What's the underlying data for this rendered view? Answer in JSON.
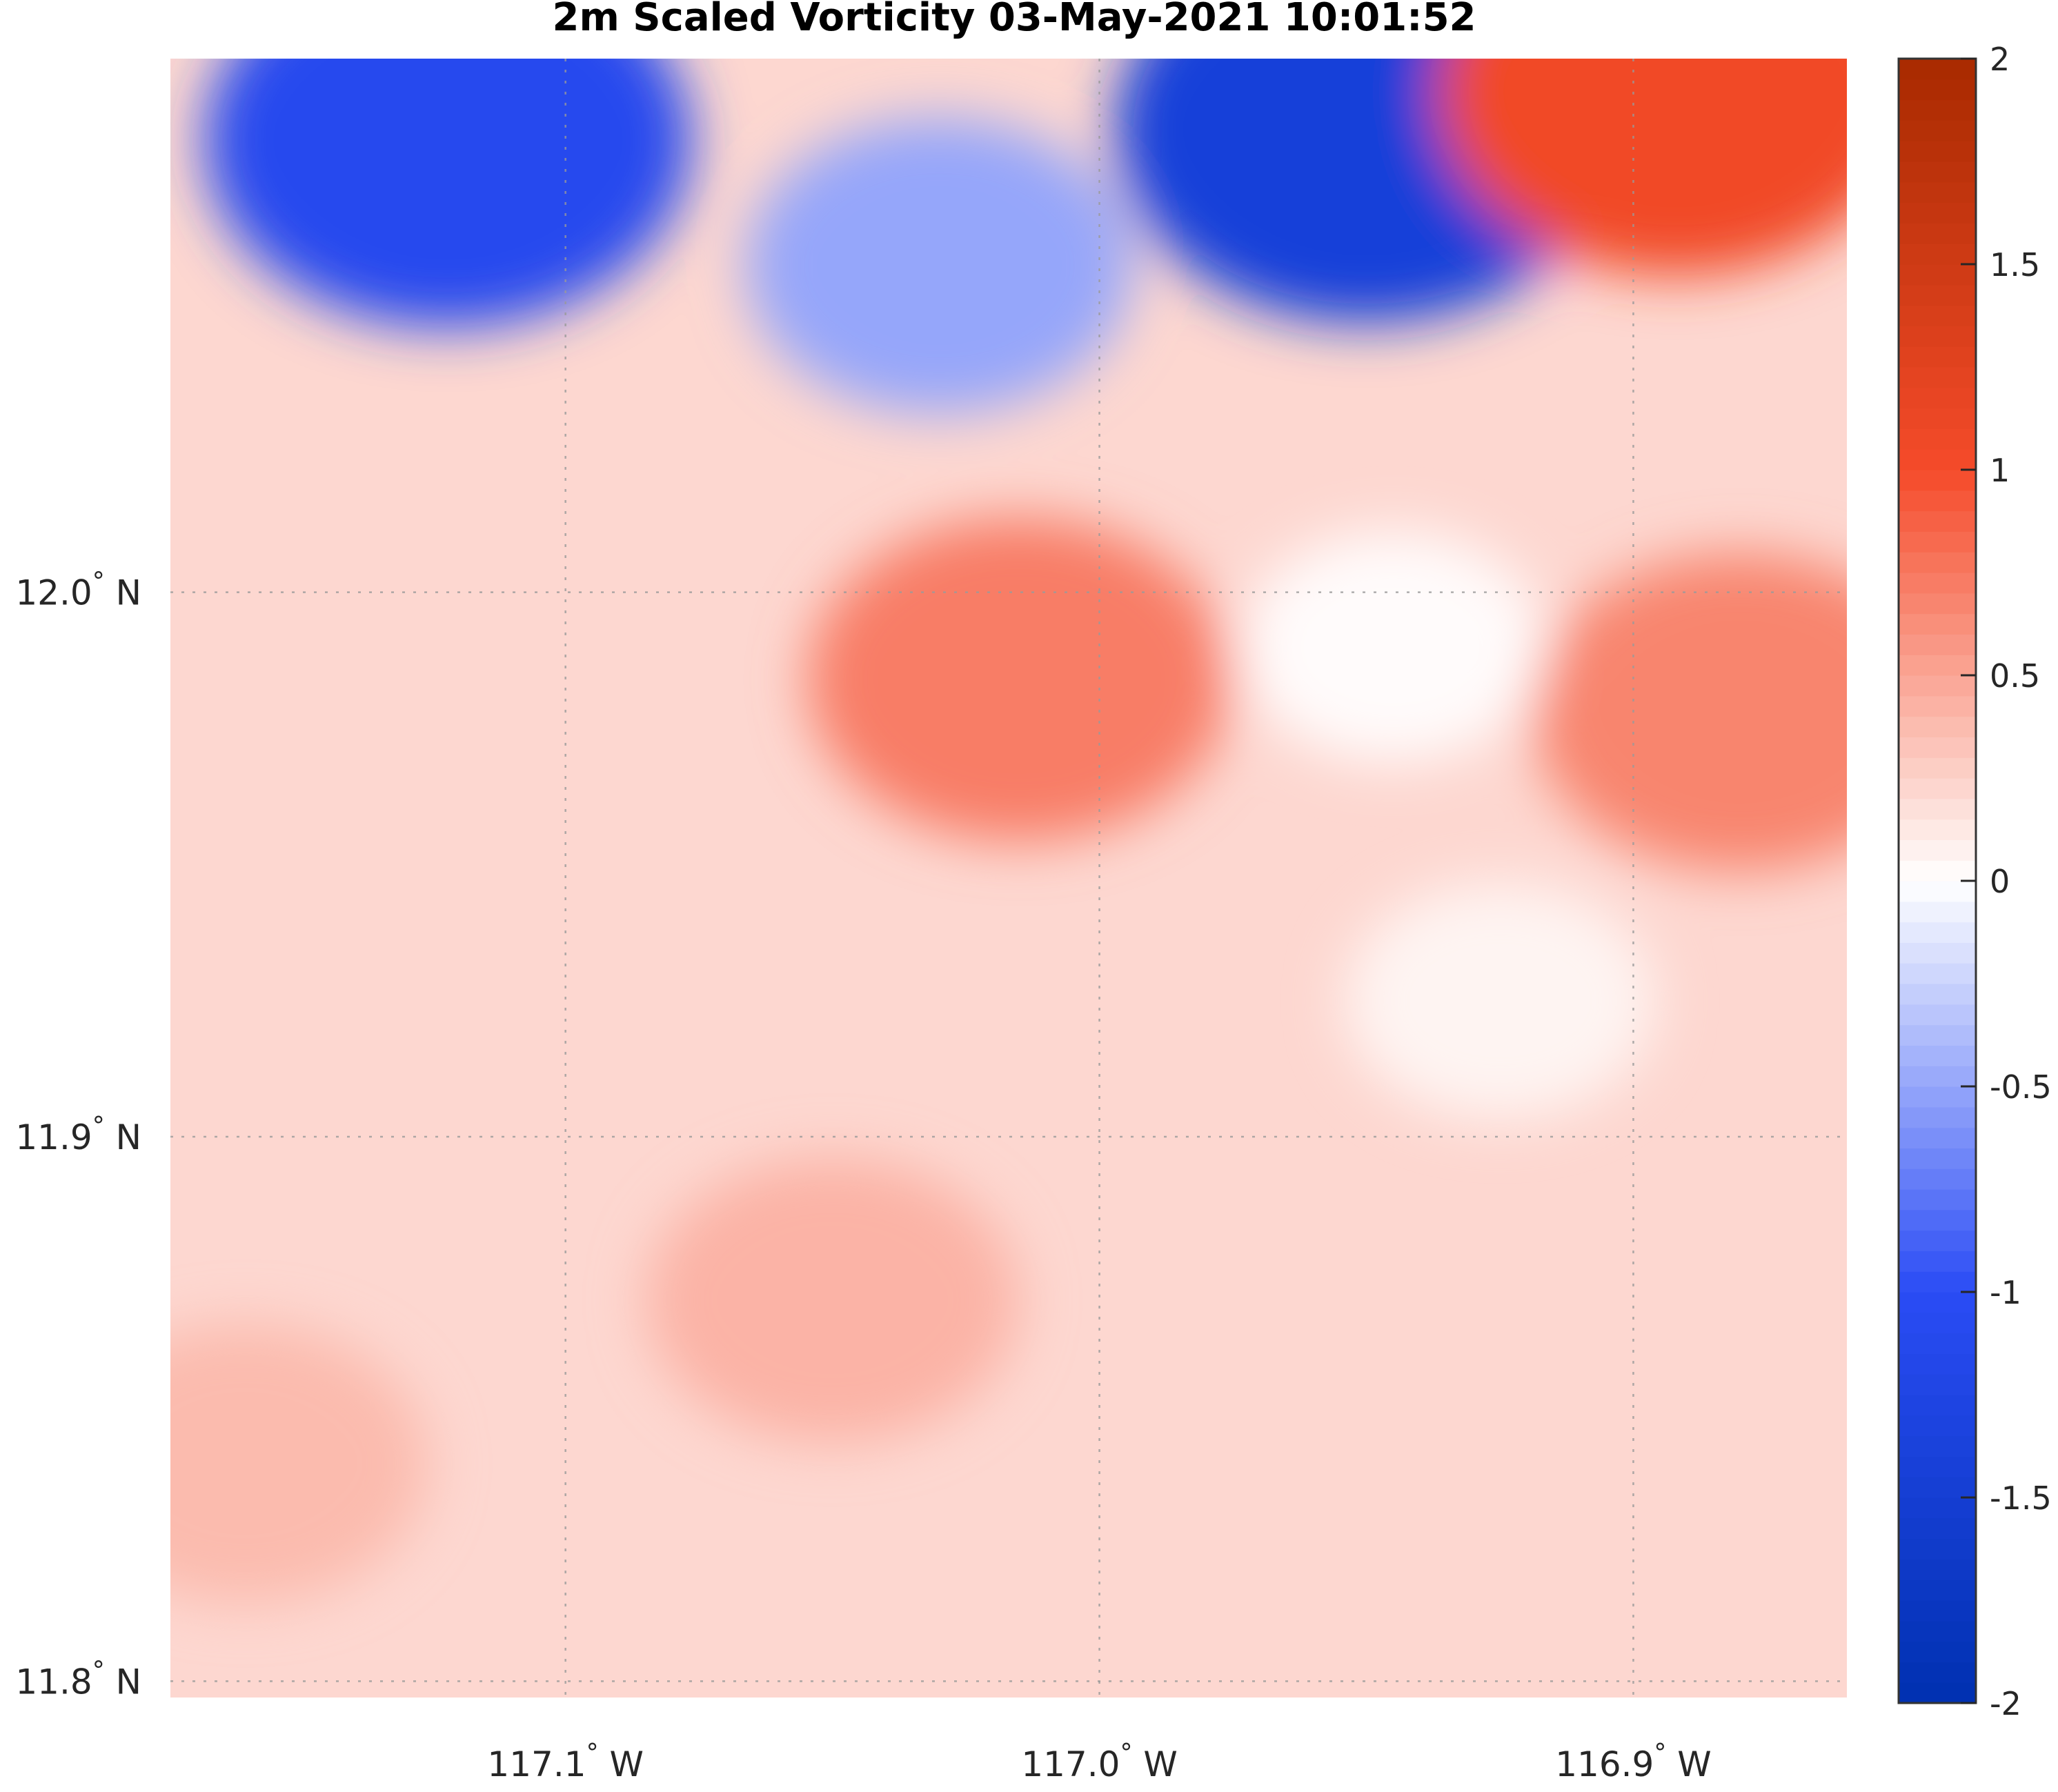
{
  "chart_data": {
    "type": "heatmap",
    "title": "2m Scaled Vorticity  03-May-2021 10:01:52",
    "x_axis": {
      "range": [
        -117.174,
        -116.86
      ],
      "ticks": [
        {
          "value": -117.1,
          "label": "117.1",
          "suffix": "W"
        },
        {
          "value": -117.0,
          "label": "117.0",
          "suffix": "W"
        },
        {
          "value": -116.9,
          "label": "116.9",
          "suffix": "W"
        }
      ]
    },
    "y_axis": {
      "range": [
        11.797,
        12.098
      ],
      "ticks": [
        {
          "value": 11.8,
          "label": "11.8",
          "suffix": "N"
        },
        {
          "value": 11.9,
          "label": "11.9",
          "suffix": "N"
        },
        {
          "value": 12.0,
          "label": "12.0",
          "suffix": "N"
        }
      ]
    },
    "grid": true,
    "colorbar": {
      "range": [
        -2,
        2
      ],
      "ticks": [
        {
          "value": 2,
          "label": "2"
        },
        {
          "value": 1.5,
          "label": "1.5"
        },
        {
          "value": 1,
          "label": "1"
        },
        {
          "value": 0.5,
          "label": "0.5"
        },
        {
          "value": 0,
          "label": "0"
        },
        {
          "value": -0.5,
          "label": "-0.5"
        },
        {
          "value": -1,
          "label": "-1"
        },
        {
          "value": -1.5,
          "label": "-1.5"
        },
        {
          "value": -2,
          "label": "-2"
        }
      ],
      "colors": {
        "low": "#0030b0",
        "mid_low": "#2a4cf5",
        "zero": "#ffffff",
        "mid_high": "#f54b2a",
        "high": "#a82a00"
      }
    },
    "features": [
      {
        "sign": "negative",
        "lon": -117.122,
        "lat": 12.083,
        "value": -1.1
      },
      {
        "sign": "negative",
        "lon": -116.95,
        "lat": 12.085,
        "value": -1.4
      },
      {
        "sign": "negative",
        "lon": -117.03,
        "lat": 12.06,
        "value": -0.5
      },
      {
        "sign": "positive",
        "lon": -116.892,
        "lat": 12.092,
        "value": 1.05
      },
      {
        "sign": "positive",
        "lon": -117.015,
        "lat": 11.984,
        "value": 0.72
      },
      {
        "sign": "positive",
        "lon": -116.88,
        "lat": 11.978,
        "value": 0.68
      },
      {
        "sign": "near-zero",
        "lon": -116.945,
        "lat": 11.99,
        "value": 0.02
      },
      {
        "sign": "near-zero",
        "lon": -116.925,
        "lat": 11.925,
        "value": 0.06
      },
      {
        "sign": "positive",
        "lon": -117.05,
        "lat": 11.87,
        "value": 0.42
      },
      {
        "sign": "positive",
        "lon": -117.16,
        "lat": 11.84,
        "value": 0.38
      }
    ]
  }
}
